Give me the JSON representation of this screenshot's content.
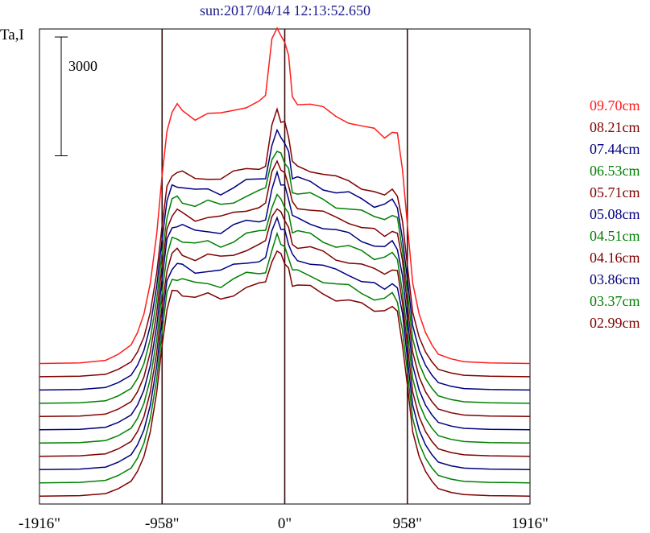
{
  "chart_data": {
    "type": "line",
    "title": "sun:2017/04/14 12:13:52.650",
    "ylabel": "Ta,I",
    "xlabel": "",
    "scale_bar_label": "3000",
    "scale_bar_value": 3000,
    "xlim": [
      -1916,
      1916
    ],
    "x_ticks": [
      {
        "value": -1916,
        "label": "-1916\""
      },
      {
        "value": -958,
        "label": "-958\""
      },
      {
        "value": 0,
        "label": "0\""
      },
      {
        "value": 958,
        "label": "958\""
      },
      {
        "value": 1916,
        "label": "1916\""
      }
    ],
    "vertical_lines": [
      -958,
      0,
      958
    ],
    "x": [
      -1916,
      -1600,
      -1400,
      -1300,
      -1200,
      -1150,
      -1100,
      -1050,
      -1000,
      -960,
      -920,
      -880,
      -840,
      -800,
      -700,
      -600,
      -500,
      -400,
      -300,
      -200,
      -150,
      -100,
      -60,
      -30,
      0,
      30,
      60,
      100,
      200,
      300,
      400,
      500,
      600,
      700,
      780,
      840,
      880,
      920,
      960,
      1000,
      1050,
      1100,
      1150,
      1200,
      1300,
      1400,
      1600,
      1916
    ],
    "profile": [
      0,
      0.002,
      0.01,
      0.03,
      0.06,
      0.1,
      0.16,
      0.26,
      0.42,
      0.6,
      0.76,
      0.82,
      0.83,
      0.82,
      0.8,
      0.81,
      0.8,
      0.82,
      0.84,
      0.85,
      0.86,
      0.92,
      0.97,
      0.94,
      0.92,
      0.88,
      0.86,
      0.85,
      0.84,
      0.82,
      0.8,
      0.79,
      0.77,
      0.75,
      0.74,
      0.76,
      0.74,
      0.62,
      0.44,
      0.26,
      0.16,
      0.1,
      0.06,
      0.03,
      0.015,
      0.006,
      0.002,
      0
    ],
    "series": [
      {
        "name": "09.70cm",
        "color": "#ff1c1c",
        "baseline": 1550,
        "amplitude": 7800,
        "peak_extra": 0.12
      },
      {
        "name": "08.21cm",
        "color": "#800000",
        "baseline": 1215,
        "amplitude": 6250,
        "peak_extra": 0.1
      },
      {
        "name": "07.44cm",
        "color": "#00007f",
        "baseline": 880,
        "amplitude": 6250,
        "peak_extra": 0.08
      },
      {
        "name": "06.53cm",
        "color": "#008000",
        "baseline": 545,
        "amplitude": 6250,
        "peak_extra": 0.06
      },
      {
        "name": "05.71cm",
        "color": "#800000",
        "baseline": 210,
        "amplitude": 6250,
        "peak_extra": 0.06
      },
      {
        "name": "05.08cm",
        "color": "#00007f",
        "baseline": -125,
        "amplitude": 6250,
        "peak_extra": 0.06
      },
      {
        "name": "04.51cm",
        "color": "#008000",
        "baseline": -460,
        "amplitude": 6250,
        "peak_extra": 0.04
      },
      {
        "name": "04.16cm",
        "color": "#800000",
        "baseline": -795,
        "amplitude": 6250,
        "peak_extra": 0.04
      },
      {
        "name": "03.86cm",
        "color": "#00007f",
        "baseline": -1130,
        "amplitude": 6250,
        "peak_extra": 0.04
      },
      {
        "name": "03.37cm",
        "color": "#008000",
        "baseline": -1465,
        "amplitude": 6250,
        "peak_extra": 0.03
      },
      {
        "name": "02.99cm",
        "color": "#800000",
        "baseline": -1800,
        "amplitude": 6250,
        "peak_extra": 0.03
      }
    ],
    "ylim": [
      -2000,
      10000
    ],
    "grid": false,
    "legend_position": "right"
  }
}
